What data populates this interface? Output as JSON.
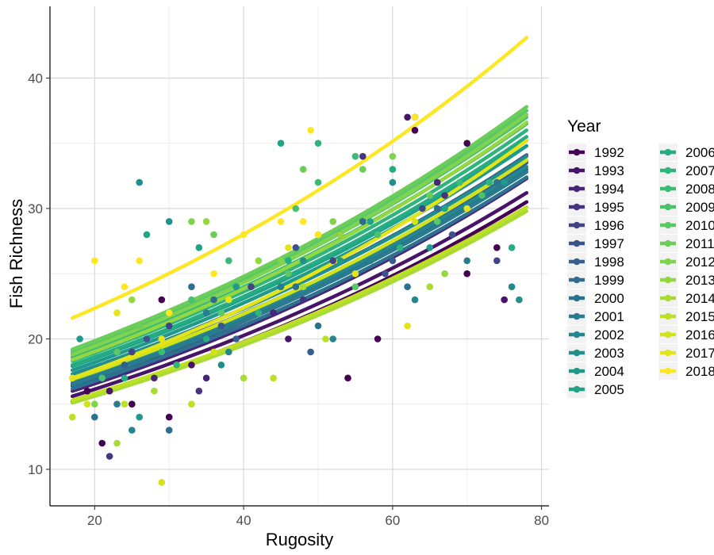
{
  "chart_data": {
    "type": "scatter",
    "title": "",
    "xlabel": "Rugosity",
    "ylabel": "Fish Richness",
    "xlim": [
      14,
      81
    ],
    "ylim": [
      7.2,
      45.5
    ],
    "x_ticks": [
      20,
      40,
      60,
      80
    ],
    "y_ticks": [
      10,
      20,
      30,
      40
    ],
    "grid": true,
    "legend_title": "Year",
    "legend_position": "right",
    "fit_range": [
      17,
      78
    ],
    "series": [
      {
        "name": "1992",
        "color": "#440154",
        "fit": [
          15.2,
          30.5
        ],
        "points": [
          [
            19,
            16
          ],
          [
            21,
            12
          ],
          [
            25,
            15
          ],
          [
            29,
            23
          ],
          [
            30,
            14
          ],
          [
            54,
            17
          ],
          [
            58,
            20
          ],
          [
            63,
            37
          ],
          [
            63,
            36
          ],
          [
            70,
            35
          ],
          [
            70,
            25
          ],
          [
            74,
            27
          ]
        ]
      },
      {
        "name": "1993",
        "color": "#481467",
        "fit": [
          15.6,
          31.2
        ],
        "points": [
          [
            22,
            16
          ],
          [
            33,
            18
          ],
          [
            46,
            20
          ],
          [
            53,
            28
          ],
          [
            62,
            37
          ],
          [
            75,
            23
          ]
        ]
      },
      {
        "name": "1994",
        "color": "#482576",
        "fit": [
          16.0,
          32.3
        ],
        "points": [
          [
            28,
            17
          ],
          [
            35,
            17
          ],
          [
            44,
            22
          ],
          [
            56,
            29
          ],
          [
            66,
            32
          ]
        ]
      },
      {
        "name": "1995",
        "color": "#463480",
        "fit": [
          16.4,
          33.0
        ],
        "points": [
          [
            22,
            11
          ],
          [
            34,
            16
          ],
          [
            48,
            23
          ],
          [
            56,
            34
          ],
          [
            67,
            31
          ]
        ]
      },
      {
        "name": "1996",
        "color": "#414487",
        "fit": [
          16.9,
          33.6
        ],
        "points": [
          [
            25,
            19
          ],
          [
            30,
            21
          ],
          [
            41,
            24
          ],
          [
            52,
            26
          ],
          [
            64,
            30
          ],
          [
            74,
            26
          ]
        ]
      },
      {
        "name": "1997",
        "color": "#3b528b",
        "fit": [
          17.3,
          34.1
        ],
        "points": [
          [
            27,
            20
          ],
          [
            37,
            21
          ],
          [
            47,
            27
          ],
          [
            59,
            25
          ],
          [
            68,
            28
          ]
        ]
      },
      {
        "name": "1998",
        "color": "#355f8d",
        "fit": [
          17.0,
          33.5
        ],
        "points": [
          [
            24,
            18
          ],
          [
            39,
            20
          ],
          [
            49,
            19
          ],
          [
            60,
            26
          ],
          [
            72,
            31
          ]
        ]
      },
      {
        "name": "1999",
        "color": "#2f6c8e",
        "fit": [
          16.6,
          33.0
        ],
        "points": [
          [
            30,
            13
          ],
          [
            36,
            23
          ],
          [
            47,
            24
          ],
          [
            56,
            29
          ],
          [
            66,
            30
          ]
        ]
      },
      {
        "name": "2000",
        "color": "#2c728e",
        "fit": [
          16.2,
          32.4
        ],
        "points": [
          [
            20,
            14
          ],
          [
            33,
            24
          ],
          [
            50,
            21
          ],
          [
            62,
            24
          ],
          [
            74,
            32
          ]
        ]
      },
      {
        "name": "2001",
        "color": "#287c8e",
        "fit": [
          16.5,
          32.8
        ],
        "points": [
          [
            23,
            15
          ],
          [
            35,
            22
          ],
          [
            45,
            24
          ],
          [
            57,
            26
          ],
          [
            70,
            26
          ]
        ]
      },
      {
        "name": "2002",
        "color": "#24868e",
        "fit": [
          16.8,
          33.2
        ],
        "points": [
          [
            25,
            13
          ],
          [
            38,
            19
          ],
          [
            52,
            20
          ],
          [
            63,
            23
          ],
          [
            76,
            24
          ]
        ]
      },
      {
        "name": "2003",
        "color": "#21908c",
        "fit": [
          17.3,
          34.0
        ],
        "points": [
          [
            26,
            32
          ],
          [
            30,
            29
          ],
          [
            37,
            18
          ],
          [
            48,
            26
          ],
          [
            60,
            32
          ],
          [
            77,
            23
          ]
        ]
      },
      {
        "name": "2004",
        "color": "#1f9a8a",
        "fit": [
          17.6,
          34.8
        ],
        "points": [
          [
            18,
            20
          ],
          [
            26,
            14
          ],
          [
            39,
            24
          ],
          [
            53,
            26
          ],
          [
            65,
            27
          ],
          [
            75,
            32
          ]
        ]
      },
      {
        "name": "2005",
        "color": "#20a386",
        "fit": [
          17.9,
          35.2
        ],
        "points": [
          [
            27,
            28
          ],
          [
            34,
            27
          ],
          [
            45,
            35
          ],
          [
            57,
            29
          ],
          [
            67,
            30
          ]
        ]
      },
      {
        "name": "2006",
        "color": "#25ac82",
        "fit": [
          18.0,
          35.5
        ],
        "points": [
          [
            24,
            17
          ],
          [
            35,
            20
          ],
          [
            46,
            26
          ],
          [
            60,
            33
          ],
          [
            76,
            27
          ]
        ]
      },
      {
        "name": "2007",
        "color": "#2fb47c",
        "fit": [
          18.3,
          36.0
        ],
        "points": [
          [
            31,
            18
          ],
          [
            42,
            22
          ],
          [
            50,
            35
          ],
          [
            61,
            27
          ],
          [
            73,
            32
          ]
        ]
      },
      {
        "name": "2008",
        "color": "#3bbb75",
        "fit": [
          18.6,
          36.5
        ],
        "points": [
          [
            29,
            19
          ],
          [
            38,
            26
          ],
          [
            50,
            32
          ],
          [
            55,
            34
          ],
          [
            69,
            32
          ]
        ]
      },
      {
        "name": "2009",
        "color": "#4ac16d",
        "fit": [
          18.9,
          37.0
        ],
        "points": [
          [
            21,
            17
          ],
          [
            33,
            23
          ],
          [
            47,
            30
          ],
          [
            58,
            28
          ],
          [
            72,
            31
          ]
        ]
      },
      {
        "name": "2010",
        "color": "#5ac864",
        "fit": [
          19.1,
          37.5
        ],
        "points": [
          [
            23,
            19
          ],
          [
            37,
            22
          ],
          [
            46,
            25
          ],
          [
            55,
            24
          ],
          [
            66,
            29
          ]
        ]
      },
      {
        "name": "2011",
        "color": "#6ccd5a",
        "fit": [
          19.2,
          37.8
        ],
        "points": [
          [
            26,
            21
          ],
          [
            36,
            28
          ],
          [
            48,
            33
          ],
          [
            56,
            33
          ],
          [
            65,
            31
          ]
        ]
      },
      {
        "name": "2012",
        "color": "#7fd34e",
        "fit": [
          18.8,
          37.2
        ],
        "points": [
          [
            20,
            15
          ],
          [
            33,
            29
          ],
          [
            45,
            26
          ],
          [
            52,
            29
          ],
          [
            60,
            34
          ]
        ]
      },
      {
        "name": "2013",
        "color": "#94d741",
        "fit": [
          18.4,
          36.6
        ],
        "points": [
          [
            25,
            23
          ],
          [
            35,
            29
          ],
          [
            42,
            26
          ],
          [
            53,
            28
          ],
          [
            67,
            25
          ]
        ]
      },
      {
        "name": "2014",
        "color": "#a8db34",
        "fit": [
          15.1,
          29.8
        ],
        "points": [
          [
            23,
            12
          ],
          [
            28,
            16
          ],
          [
            40,
            17
          ],
          [
            48,
            24
          ],
          [
            65,
            24
          ]
        ]
      },
      {
        "name": "2015",
        "color": "#bddf26",
        "fit": [
          15.3,
          30.1
        ],
        "points": [
          [
            17,
            14
          ],
          [
            24,
            15
          ],
          [
            33,
            15
          ],
          [
            44,
            17
          ],
          [
            51,
            20
          ]
        ]
      },
      {
        "name": "2016",
        "color": "#d2e21b",
        "fit": [
          16.9,
          33.7
        ],
        "points": [
          [
            19,
            15
          ],
          [
            29,
            9
          ],
          [
            36,
            19
          ],
          [
            50,
            28
          ],
          [
            63,
            29
          ]
        ]
      },
      {
        "name": "2017",
        "color": "#e5e419",
        "fit": [
          17.0,
          35.2
        ],
        "points": [
          [
            17,
            17
          ],
          [
            23,
            22
          ],
          [
            29,
            20
          ],
          [
            38,
            23
          ],
          [
            46,
            27
          ],
          [
            55,
            25
          ],
          [
            62,
            21
          ],
          [
            70,
            30
          ]
        ]
      },
      {
        "name": "2018",
        "color": "#fde725",
        "fit": [
          21.6,
          43.1
        ],
        "points": [
          [
            20,
            26
          ],
          [
            24,
            24
          ],
          [
            26,
            26
          ],
          [
            30,
            22
          ],
          [
            36,
            25
          ],
          [
            40,
            28
          ],
          [
            45,
            29
          ],
          [
            49,
            36
          ],
          [
            48,
            29
          ],
          [
            50,
            28
          ],
          [
            63,
            37
          ]
        ]
      }
    ]
  }
}
